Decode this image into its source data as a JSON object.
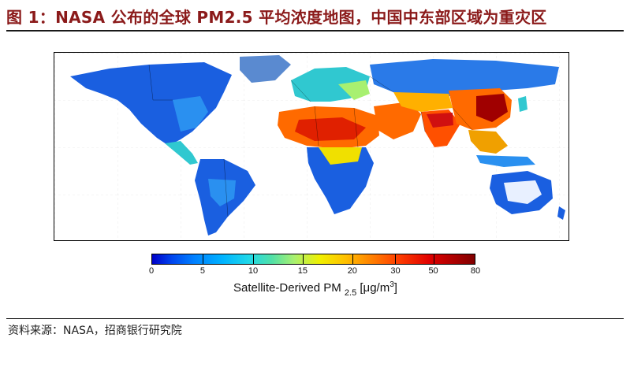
{
  "figure": {
    "title": "图 1：NASA 公布的全球 PM2.5 平均浓度地图，中国中东部区域为重灾区",
    "source": "资料来源：NASA，招商银行研究院"
  },
  "colorbar": {
    "ticks": [
      "0",
      "5",
      "10",
      "15",
      "20",
      "30",
      "50",
      "80"
    ],
    "tick_fractions": [
      0.0,
      0.158,
      0.314,
      0.467,
      0.62,
      0.753,
      0.87,
      1.0
    ],
    "label_main": "Satellite-Derived PM",
    "label_sub": "2.5",
    "label_unit_pre": "[μg/m",
    "label_unit_sup": "3",
    "label_unit_post": "]",
    "colors": [
      "#0000c8",
      "#0080ff",
      "#20d8e8",
      "#a8f070",
      "#f0f000",
      "#ff8000",
      "#e00000",
      "#800000"
    ]
  },
  "map": {
    "regions": [
      {
        "name": "North America",
        "level": "low"
      },
      {
        "name": "South America",
        "level": "low"
      },
      {
        "name": "Europe",
        "level": "moderate"
      },
      {
        "name": "Sahara / North Africa",
        "level": "high"
      },
      {
        "name": "Middle East",
        "level": "high"
      },
      {
        "name": "India",
        "level": "high"
      },
      {
        "name": "Central and Eastern China",
        "level": "very high"
      },
      {
        "name": "Australia",
        "level": "low"
      }
    ],
    "colors": {
      "ocean": "#ffffff",
      "low": "#1a5fe0",
      "moderate": "#30c8d0",
      "elevated": "#f0e000",
      "high": "#ff6a00",
      "very_high": "#a00000"
    }
  }
}
